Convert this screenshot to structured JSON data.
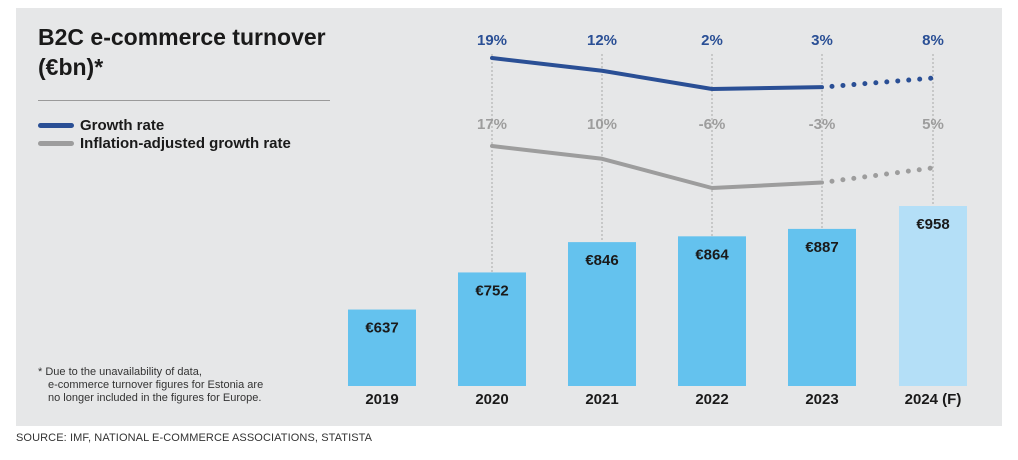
{
  "title": "B2C e-commerce turnover (€bn)*",
  "legend": [
    {
      "label": "Growth rate",
      "color": "#2a4f95"
    },
    {
      "label": "Inflation-adjusted growth rate",
      "color": "#9d9d9d"
    }
  ],
  "footnote": [
    "* Due to the unavailability of data,",
    "e-commerce turnover figures for Estonia are",
    "no longer included in the figures for Europe."
  ],
  "source": "SOURCE: IMF, NATIONAL E-COMMERCE ASSOCIATIONS, STATISTA",
  "chart_data": {
    "type": "bar",
    "title": "B2C e-commerce turnover (€bn)*",
    "categories": [
      "2019",
      "2020",
      "2021",
      "2022",
      "2023",
      "2024 (F)"
    ],
    "values": [
      637,
      752,
      846,
      864,
      887,
      958
    ],
    "value_labels": [
      "€637",
      "€752",
      "€846",
      "€864",
      "€887",
      "€958"
    ],
    "unit": "€bn",
    "forecast_index": 5,
    "bar_color": "#64c2ee",
    "forecast_bar_color": "#b4dff7",
    "ylim": [
      400,
      1000
    ],
    "series": [
      {
        "name": "Growth rate",
        "type": "line",
        "color": "#2a4f95",
        "values": [
          null,
          19,
          12,
          2,
          3,
          8
        ],
        "labels": [
          "",
          "19%",
          "12%",
          "2%",
          "3%",
          "8%"
        ]
      },
      {
        "name": "Inflation-adjusted growth rate",
        "type": "line",
        "color": "#9d9d9d",
        "values": [
          null,
          17,
          10,
          -6,
          -3,
          5
        ],
        "labels": [
          "",
          "17%",
          "10%",
          "-6%",
          "-3%",
          "5%"
        ]
      }
    ],
    "forecast_style": "dotted"
  }
}
